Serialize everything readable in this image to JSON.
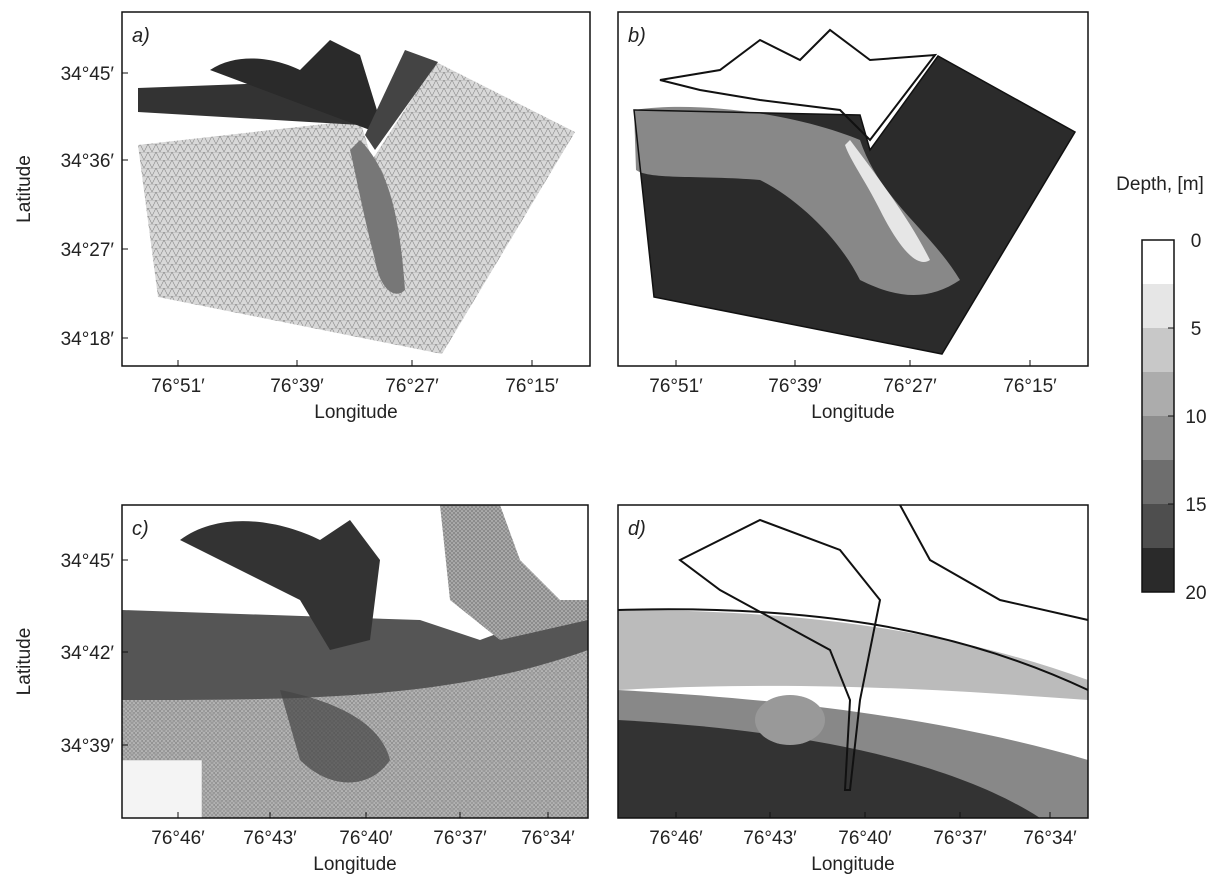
{
  "panels": [
    {
      "label": "a)",
      "x_label": "Longitude",
      "y_label": "Latitude",
      "xticks": [
        "76°51′",
        "76°39′",
        "76°27′",
        "76°15′"
      ],
      "yticks": [
        "34°45′",
        "34°36′",
        "34°27′",
        "34°18′"
      ]
    },
    {
      "label": "b)",
      "x_label": "Longitude",
      "xticks": [
        "76°51′",
        "76°39′",
        "76°27′",
        "76°15′"
      ]
    },
    {
      "label": "c)",
      "x_label": "Longitude",
      "y_label": "Latitude",
      "xticks": [
        "76°46′",
        "76°43′",
        "76°40′",
        "76°37′",
        "76°34′"
      ],
      "yticks": [
        "34°45′",
        "34°42′",
        "34°39′"
      ]
    },
    {
      "label": "d)",
      "x_label": "Longitude",
      "xticks": [
        "76°46′",
        "76°43′",
        "76°40′",
        "76°37′",
        "76°34′"
      ]
    }
  ],
  "colorbar": {
    "title": "Depth, [m]",
    "lim": [
      0,
      20
    ],
    "ticks": [
      0,
      5,
      10,
      15,
      20
    ]
  }
}
